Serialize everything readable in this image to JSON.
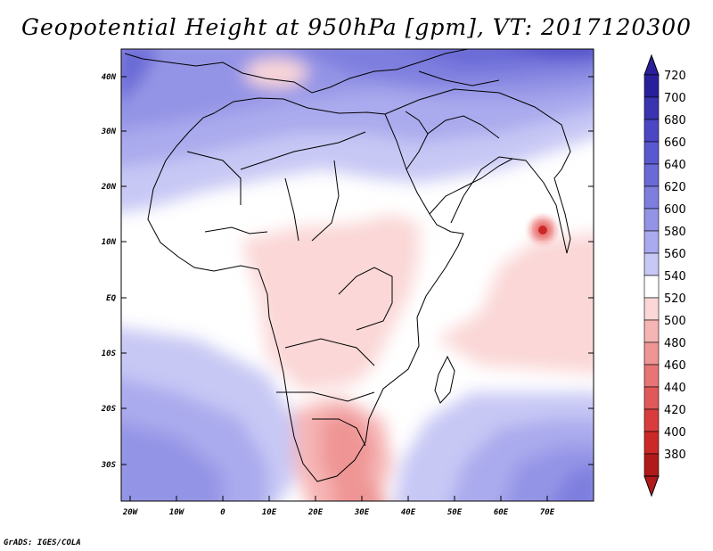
{
  "title": "Geopotential Height at 950hPa [gpm], VT: 2017120300",
  "credit": "GrADS: IGES/COLA",
  "lat_labels": [
    "40N",
    "30N",
    "20N",
    "10N",
    "EQ",
    "10S",
    "20S",
    "30S"
  ],
  "lon_labels": [
    "20W",
    "10W",
    "0",
    "10E",
    "20E",
    "30E",
    "40E",
    "50E",
    "60E",
    "70E"
  ],
  "colorbar": {
    "labels": [
      "720",
      "700",
      "680",
      "660",
      "640",
      "620",
      "600",
      "580",
      "560",
      "540",
      "520",
      "500",
      "480",
      "460",
      "440",
      "420",
      "400",
      "380"
    ],
    "colors": [
      "#2a1f9a",
      "#3a34b0",
      "#4a46c4",
      "#5a58cf",
      "#6a6ad7",
      "#7e7edf",
      "#9494e6",
      "#aaaaee",
      "#c8c8f5",
      "#ffffff",
      "#fbd7d7",
      "#f6b5b5",
      "#ef9595",
      "#e87575",
      "#e05858",
      "#d83c3c",
      "#cc2828",
      "#b01a1a"
    ]
  }
}
